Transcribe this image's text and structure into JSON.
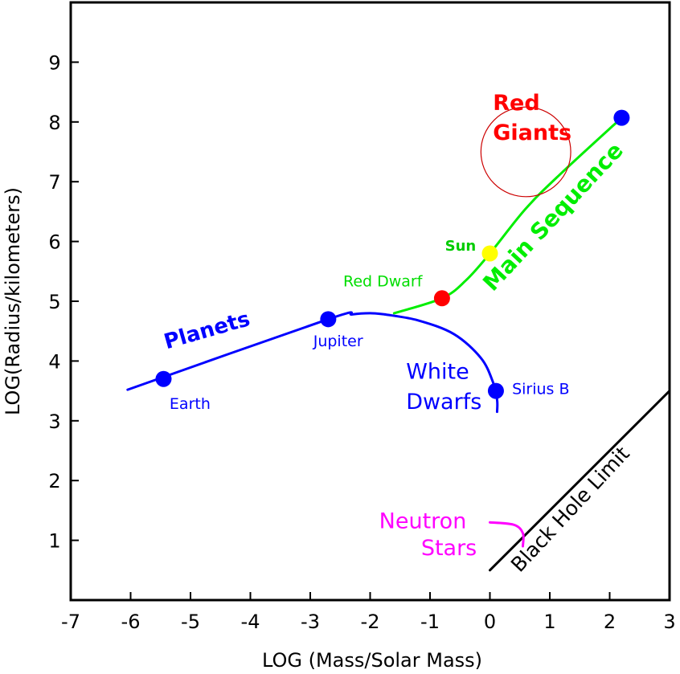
{
  "chart_data": {
    "type": "scatter",
    "title": "",
    "xlabel": "LOG (Mass/Solar Mass)",
    "ylabel": "LOG(Radius/kilometers)",
    "xlim": [
      -7,
      3
    ],
    "ylim": [
      0,
      10
    ],
    "xticks": [
      "-7",
      "-6",
      "-5",
      "-4",
      "-3",
      "-2",
      "-1",
      "0",
      "1",
      "2",
      "3"
    ],
    "yticks": [
      "1",
      "2",
      "3",
      "4",
      "5",
      "6",
      "7",
      "8",
      "9"
    ],
    "points": [
      {
        "name": "Earth",
        "x": -5.45,
        "y": 3.7,
        "color": "#0000ff"
      },
      {
        "name": "Jupiter",
        "x": -2.7,
        "y": 4.7,
        "color": "#0000ff"
      },
      {
        "name": "Red Dwarf",
        "x": -0.8,
        "y": 5.05,
        "color": "#ff0000"
      },
      {
        "name": "Sun",
        "x": 0.0,
        "y": 5.8,
        "color": "#ffff00"
      },
      {
        "name": "Sirius B",
        "x": 0.1,
        "y": 3.5,
        "color": "#0000ff"
      },
      {
        "name": "",
        "x": 2.2,
        "y": 8.07,
        "color": "#0000ff"
      }
    ],
    "regions": [
      {
        "name": "Planets",
        "color": "#0000ff",
        "x": [
          -6.05,
          -2.7,
          -2.3,
          -2.0,
          -1.75
        ],
        "y": [
          3.52,
          4.7,
          4.78,
          4.8,
          4.78
        ]
      },
      {
        "name": "White Dwarfs",
        "color": "#0000ff",
        "x": [
          -1.75,
          -1.2,
          -0.6,
          -0.15,
          0.05,
          0.12,
          0.12
        ],
        "y": [
          4.78,
          4.68,
          4.45,
          4.05,
          3.65,
          3.35,
          3.15
        ]
      },
      {
        "name": "Main Sequence",
        "color": "#00ee00",
        "x": [
          -1.6,
          -0.8,
          -0.4,
          0.0,
          0.6,
          1.2,
          2.2
        ],
        "y": [
          4.8,
          5.05,
          5.35,
          5.8,
          6.55,
          7.15,
          8.07
        ]
      },
      {
        "name": "Black Hole Limit",
        "color": "#000000",
        "x": [
          0.0,
          3.0
        ],
        "y": [
          0.5,
          3.5
        ]
      },
      {
        "name": "Neutron Stars",
        "color": "#ff00ff",
        "x": [
          0.0,
          0.4,
          0.55,
          0.55
        ],
        "y": [
          1.3,
          1.26,
          1.12,
          0.9
        ]
      }
    ],
    "red_giants": {
      "cx": 0.6,
      "cy": 7.5,
      "r": 0.75,
      "color": "#cc0000"
    },
    "annotations": [
      {
        "text": "Earth",
        "x": -5.35,
        "y": 3.2,
        "color": "#0000ff"
      },
      {
        "text": "Jupiter",
        "x": -2.95,
        "y": 4.25,
        "color": "#0000ff"
      },
      {
        "text": "Red Dwarf",
        "x": -2.45,
        "y": 5.25,
        "color": "#00dd00"
      },
      {
        "text": "Sun",
        "x": -0.75,
        "y": 5.85,
        "color": "#00cc00"
      },
      {
        "text": "Sirius B",
        "x": 0.37,
        "y": 3.45,
        "color": "#0000ff"
      },
      {
        "text": "Planets",
        "x": -5.4,
        "y": 4.2,
        "color": "#0000ff"
      },
      {
        "text": "White",
        "x": -1.4,
        "y": 3.7,
        "color": "#0000ff"
      },
      {
        "text": "Dwarfs",
        "x": -1.4,
        "y": 3.2,
        "color": "#0000ff"
      },
      {
        "text": "Main Sequence",
        "x": 0.05,
        "y": 5.15,
        "color": "#00ee00"
      },
      {
        "text": "Black Hole Limit",
        "x": 0.5,
        "y": 0.45,
        "color": "#000000"
      },
      {
        "text": "Red",
        "x": 0.05,
        "y": 8.2,
        "color": "#ff0000"
      },
      {
        "text": "Giants",
        "x": 0.05,
        "y": 7.7,
        "color": "#ff0000"
      },
      {
        "text": "Neutron",
        "x": -1.85,
        "y": 1.2,
        "color": "#ff00ff"
      },
      {
        "text": "Stars",
        "x": -1.15,
        "y": 0.75,
        "color": "#ff00ff"
      }
    ]
  }
}
